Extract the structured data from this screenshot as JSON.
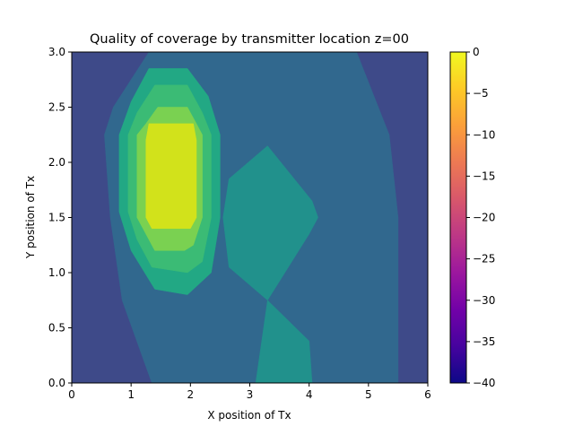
{
  "chart_data": {
    "type": "heatmap",
    "subtype": "filled-contour",
    "title": "Quality of coverage by transmitter location z=00",
    "xlabel": "X position of Tx",
    "ylabel": "Y position of Tx",
    "xlim": [
      0,
      6
    ],
    "ylim": [
      0,
      3
    ],
    "xticks": [
      "0",
      "1",
      "2",
      "3",
      "4",
      "5",
      "6"
    ],
    "yticks": [
      "0.0",
      "0.5",
      "1.0",
      "1.5",
      "2.0",
      "2.5",
      "3.0"
    ],
    "colormap": "plasma",
    "colorbar": {
      "range": [
        -40,
        0
      ],
      "ticks": [
        "0",
        "−5",
        "−10",
        "−15",
        "−20",
        "−25",
        "−30",
        "−35",
        "−40"
      ],
      "stops": [
        "#0d0887",
        "#46039f",
        "#7201a8",
        "#9c179e",
        "#bd3786",
        "#d8576b",
        "#ed7953",
        "#fb9f3a",
        "#fdca26",
        "#f0f921"
      ]
    },
    "grid": false,
    "regions": [
      {
        "level": -40,
        "color": "#3b0f70",
        "points": [
          [
            0,
            3
          ],
          [
            0.15,
            3
          ],
          [
            0,
            2.65
          ]
        ]
      },
      {
        "level": -40,
        "color": "#3b0f70",
        "points": [
          [
            0,
            0
          ],
          [
            0.12,
            0
          ],
          [
            0,
            0.22
          ]
        ]
      },
      {
        "level": -36,
        "color": "#3e4a89",
        "points": [
          [
            0,
            0
          ],
          [
            6,
            0
          ],
          [
            6,
            3
          ],
          [
            0,
            3
          ]
        ]
      },
      {
        "level": -32,
        "color": "#31688e",
        "points": [
          [
            1.35,
            0
          ],
          [
            5.5,
            0
          ],
          [
            5.5,
            1.5
          ],
          [
            5.35,
            2.25
          ],
          [
            4.8,
            3
          ],
          [
            1.3,
            3
          ],
          [
            0.7,
            2.5
          ],
          [
            0.55,
            2.25
          ],
          [
            0.65,
            1.5
          ],
          [
            0.85,
            0.75
          ]
        ]
      },
      {
        "level": -28,
        "color": "#21918c",
        "points": [
          [
            2.65,
            1.85
          ],
          [
            3.3,
            2.15
          ],
          [
            4.05,
            1.65
          ],
          [
            4.15,
            1.5
          ],
          [
            4.0,
            1.35
          ],
          [
            3.3,
            0.75
          ],
          [
            2.65,
            1.05
          ],
          [
            2.55,
            1.5
          ]
        ]
      },
      {
        "level": -28,
        "color": "#21918c",
        "points": [
          [
            3.1,
            0
          ],
          [
            4.05,
            0
          ],
          [
            4.0,
            0.38
          ],
          [
            3.3,
            0.75
          ]
        ]
      },
      {
        "level": -24,
        "color": "#22a884",
        "points": [
          [
            1.95,
            2.85
          ],
          [
            2.3,
            2.6
          ],
          [
            2.5,
            2.25
          ],
          [
            2.5,
            1.5
          ],
          [
            2.35,
            1.0
          ],
          [
            1.95,
            0.8
          ],
          [
            1.4,
            0.85
          ],
          [
            1.0,
            1.2
          ],
          [
            0.8,
            1.55
          ],
          [
            0.8,
            2.25
          ],
          [
            1.0,
            2.55
          ],
          [
            1.3,
            2.85
          ]
        ]
      },
      {
        "level": -20,
        "color": "#3bbb75",
        "points": [
          [
            1.95,
            2.7
          ],
          [
            2.2,
            2.45
          ],
          [
            2.35,
            2.25
          ],
          [
            2.35,
            1.5
          ],
          [
            2.2,
            1.1
          ],
          [
            1.95,
            1.0
          ],
          [
            1.35,
            1.05
          ],
          [
            1.1,
            1.3
          ],
          [
            0.95,
            1.55
          ],
          [
            0.95,
            2.25
          ],
          [
            1.1,
            2.45
          ],
          [
            1.4,
            2.7
          ]
        ]
      },
      {
        "level": -16,
        "color": "#7ad151",
        "points": [
          [
            1.95,
            2.5
          ],
          [
            2.1,
            2.35
          ],
          [
            2.2,
            2.25
          ],
          [
            2.2,
            1.5
          ],
          [
            2.05,
            1.25
          ],
          [
            1.9,
            1.2
          ],
          [
            1.4,
            1.2
          ],
          [
            1.2,
            1.4
          ],
          [
            1.1,
            1.5
          ],
          [
            1.1,
            2.25
          ],
          [
            1.25,
            2.35
          ],
          [
            1.45,
            2.5
          ]
        ]
      },
      {
        "level": -12,
        "color": "#d2e21b",
        "points": [
          [
            1.3,
            2.35
          ],
          [
            2.05,
            2.35
          ],
          [
            2.1,
            2.2
          ],
          [
            2.1,
            1.5
          ],
          [
            2.0,
            1.4
          ],
          [
            1.35,
            1.4
          ],
          [
            1.25,
            1.5
          ],
          [
            1.25,
            2.2
          ]
        ]
      }
    ]
  }
}
